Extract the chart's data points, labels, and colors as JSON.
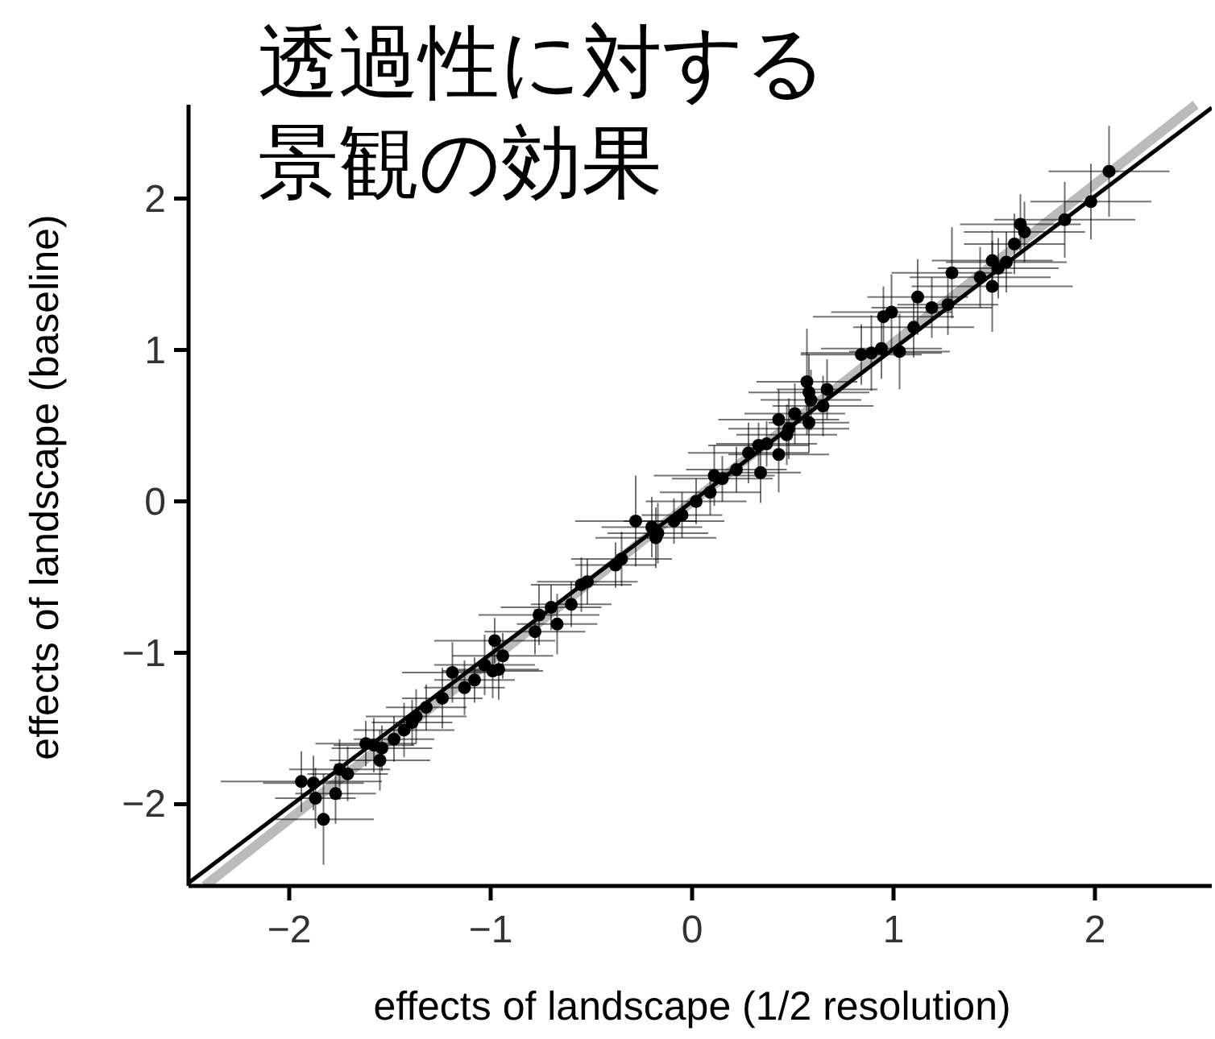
{
  "chart_data": {
    "type": "scatter",
    "title": "透過性に対する景観の効果",
    "xlabel": "effects of landscape (1/2 resolution)",
    "ylabel": "effects of landscape (baseline)",
    "xlim": [
      -2.5,
      2.58
    ],
    "ylim": [
      -2.54,
      2.62
    ],
    "xticks": [
      {
        "value": -2,
        "label": "−2"
      },
      {
        "value": -1,
        "label": "−1"
      },
      0,
      1,
      2
    ],
    "yticks": [
      {
        "value": -2,
        "label": "−2"
      },
      {
        "value": -1,
        "label": "−1"
      },
      0,
      1,
      2
    ],
    "series": [
      {
        "type": "line",
        "color": "#bbbbbb",
        "x": [
          -2.42,
          2.5
        ],
        "values": [
          -2.54,
          2.62
        ]
      },
      {
        "type": "line",
        "color": "#000000",
        "x": [
          -2.5,
          2.58
        ],
        "values": [
          -2.52,
          2.6
        ]
      },
      {
        "color": "#000000",
        "marker": "circle",
        "x": [
          -1.94,
          -1.88,
          -1.87,
          -1.83,
          -1.77,
          -1.75,
          -1.71,
          -1.62,
          -1.58,
          -1.55,
          -1.54,
          -1.48,
          -1.43,
          -1.39,
          -1.37,
          -1.32,
          -1.24,
          -1.19,
          -1.13,
          -1.08,
          -1.03,
          -0.99,
          -0.98,
          -0.96,
          -0.94,
          -0.78,
          -0.76,
          -0.7,
          -0.67,
          -0.6,
          -0.55,
          -0.52,
          -0.38,
          -0.35,
          -0.28,
          -0.2,
          -0.18,
          -0.17,
          -0.09,
          -0.05,
          0.02,
          0.09,
          0.11,
          0.15,
          0.22,
          0.28,
          0.33,
          0.34,
          0.37,
          0.43,
          0.43,
          0.47,
          0.48,
          0.51,
          0.57,
          0.58,
          0.59,
          0.58,
          0.65,
          0.67,
          0.84,
          0.89,
          0.94,
          0.95,
          0.99,
          1.03,
          1.1,
          1.12,
          1.19,
          1.27,
          1.29,
          1.43,
          1.49,
          1.49,
          1.52,
          1.56,
          1.6,
          1.63,
          1.65,
          1.85,
          1.98,
          2.07
        ],
        "values": [
          -1.85,
          -1.86,
          -1.96,
          -2.1,
          -1.93,
          -1.77,
          -1.8,
          -1.6,
          -1.61,
          -1.71,
          -1.63,
          -1.57,
          -1.51,
          -1.46,
          -1.42,
          -1.36,
          -1.3,
          -1.13,
          -1.23,
          -1.18,
          -1.08,
          -1.12,
          -0.92,
          -1.11,
          -1.02,
          -0.86,
          -0.75,
          -0.7,
          -0.81,
          -0.68,
          -0.55,
          -0.53,
          -0.42,
          -0.38,
          -0.13,
          -0.17,
          -0.24,
          -0.21,
          -0.13,
          -0.09,
          0.0,
          0.06,
          0.17,
          0.15,
          0.21,
          0.32,
          0.37,
          0.19,
          0.38,
          0.54,
          0.31,
          0.44,
          0.48,
          0.58,
          0.79,
          0.72,
          0.67,
          0.52,
          0.63,
          0.74,
          0.97,
          0.98,
          1.01,
          1.22,
          1.25,
          0.99,
          1.15,
          1.35,
          1.28,
          1.3,
          1.51,
          1.48,
          1.59,
          1.42,
          1.54,
          1.58,
          1.7,
          1.83,
          1.78,
          1.86,
          1.98,
          2.18
        ],
        "xerrors": [
          0.4,
          0.25,
          0.2,
          0.25,
          0.2,
          0.25,
          0.2,
          0.25,
          0.2,
          0.25,
          0.25,
          0.2,
          0.25,
          0.2,
          0.25,
          0.2,
          0.2,
          0.25,
          0.2,
          0.2,
          0.25,
          0.25,
          0.3,
          0.2,
          0.25,
          0.25,
          0.3,
          0.25,
          0.2,
          0.2,
          0.25,
          0.25,
          0.2,
          0.25,
          0.3,
          0.25,
          0.3,
          0.25,
          0.25,
          0.2,
          0.25,
          0.25,
          0.3,
          0.25,
          0.25,
          0.3,
          0.25,
          0.2,
          0.25,
          0.3,
          0.25,
          0.25,
          0.3,
          0.25,
          0.25,
          0.3,
          0.25,
          0.2,
          0.25,
          0.25,
          0.3,
          0.35,
          0.3,
          0.35,
          0.3,
          0.25,
          0.3,
          0.25,
          0.3,
          0.25,
          0.3,
          0.35,
          0.3,
          0.4,
          0.3,
          0.3,
          0.25,
          0.3,
          0.3,
          0.35,
          0.3,
          0.3
        ],
        "errors": [
          0.2,
          0.18,
          0.2,
          0.3,
          0.2,
          0.2,
          0.18,
          0.15,
          0.18,
          0.2,
          0.15,
          0.15,
          0.18,
          0.15,
          0.18,
          0.15,
          0.2,
          0.2,
          0.18,
          0.15,
          0.2,
          0.18,
          0.15,
          0.2,
          0.15,
          0.15,
          0.2,
          0.15,
          0.2,
          0.15,
          0.18,
          0.15,
          0.15,
          0.18,
          0.3,
          0.2,
          0.2,
          0.2,
          0.15,
          0.15,
          0.15,
          0.15,
          0.2,
          0.15,
          0.15,
          0.2,
          0.15,
          0.2,
          0.15,
          0.2,
          0.25,
          0.2,
          0.2,
          0.2,
          0.35,
          0.25,
          0.2,
          0.2,
          0.2,
          0.2,
          0.2,
          0.25,
          0.2,
          0.2,
          0.25,
          0.25,
          0.2,
          0.25,
          0.2,
          0.2,
          0.3,
          0.2,
          0.2,
          0.3,
          0.2,
          0.2,
          0.2,
          0.2,
          0.2,
          0.25,
          0.25,
          0.3
        ]
      }
    ]
  }
}
